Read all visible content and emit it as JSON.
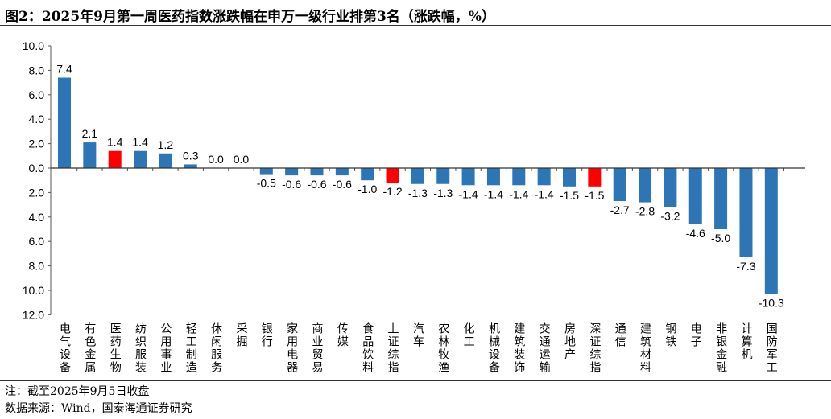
{
  "title": "图2：2025年9月第一周医药指数涨跌幅在申万一级行业排第3名（涨跌幅，%）",
  "notes": {
    "note": "注：截至2025年9月5日收盘",
    "source": "数据来源：Wind，国泰海通证券研究"
  },
  "chart_data": {
    "type": "bar",
    "title": "",
    "xlabel": "",
    "ylabel": "",
    "ylim": [
      -12,
      10
    ],
    "yticks": [
      10,
      8,
      6,
      4,
      2,
      0,
      -2,
      -4,
      -6,
      -8,
      -10,
      -12
    ],
    "ytick_labels": [
      "10.0",
      "8.0",
      "6.0",
      "4.0",
      "2.0",
      "0.0",
      "2.0",
      "4.0",
      "6.0",
      "8.0",
      "10.0",
      "12.0"
    ],
    "grid": false,
    "categories": [
      "电气设备",
      "有色金属",
      "医药生物",
      "纺织服装",
      "公用事业",
      "轻工制造",
      "休闲服务",
      "采掘",
      "银行",
      "家用电器",
      "商业贸易",
      "传媒",
      "食品饮料",
      "上证综指",
      "汽车",
      "农林牧渔",
      "化工",
      "机械设备",
      "建筑装饰",
      "交通运输",
      "房地产",
      "深证综指",
      "通信",
      "建筑材料",
      "钢铁",
      "电子",
      "非银金融",
      "计算机",
      "国防军工"
    ],
    "values": [
      7.4,
      2.1,
      1.4,
      1.4,
      1.2,
      0.3,
      0.0,
      0.0,
      -0.5,
      -0.6,
      -0.6,
      -0.6,
      -1.0,
      -1.2,
      -1.3,
      -1.3,
      -1.4,
      -1.4,
      -1.4,
      -1.4,
      -1.5,
      -1.5,
      -2.7,
      -2.8,
      -3.2,
      -4.6,
      -5.0,
      -7.3,
      -10.3
    ],
    "highlight": [
      "医药生物",
      "上证综指",
      "深证综指"
    ],
    "colors": {
      "default": "#2E75B6",
      "highlight": "#FF0000"
    }
  }
}
